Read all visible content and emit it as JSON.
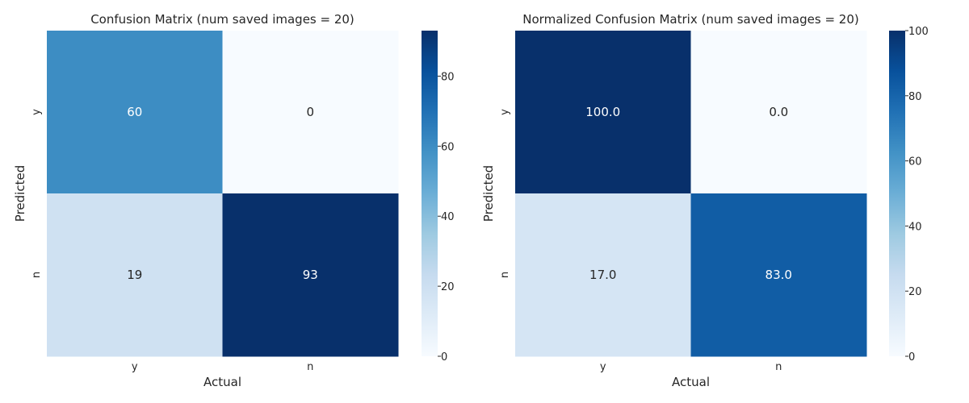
{
  "chart_data": [
    {
      "type": "heatmap",
      "title": "Confusion Matrix (num saved images = 20)",
      "xlabel": "Actual",
      "ylabel": "Predicted",
      "x_categories": [
        "y",
        "n"
      ],
      "y_categories": [
        "y",
        "n"
      ],
      "values": [
        [
          60,
          0
        ],
        [
          19,
          93
        ]
      ],
      "cell_labels": [
        [
          "60",
          "0"
        ],
        [
          "19",
          "93"
        ]
      ],
      "colorbar": {
        "min": 0,
        "max": 93,
        "ticks": [
          0,
          20,
          40,
          60,
          80
        ]
      },
      "colormap": "Blues"
    },
    {
      "type": "heatmap",
      "title": "Normalized Confusion Matrix (num saved images = 20)",
      "xlabel": "Actual",
      "ylabel": "Predicted",
      "x_categories": [
        "y",
        "n"
      ],
      "y_categories": [
        "y",
        "n"
      ],
      "values": [
        [
          100.0,
          0.0
        ],
        [
          17.0,
          83.0
        ]
      ],
      "cell_labels": [
        [
          "100.0",
          "0.0"
        ],
        [
          "17.0",
          "83.0"
        ]
      ],
      "colorbar": {
        "min": 0,
        "max": 100,
        "ticks": [
          0,
          20,
          40,
          60,
          80,
          100
        ]
      },
      "colormap": "Blues"
    }
  ]
}
